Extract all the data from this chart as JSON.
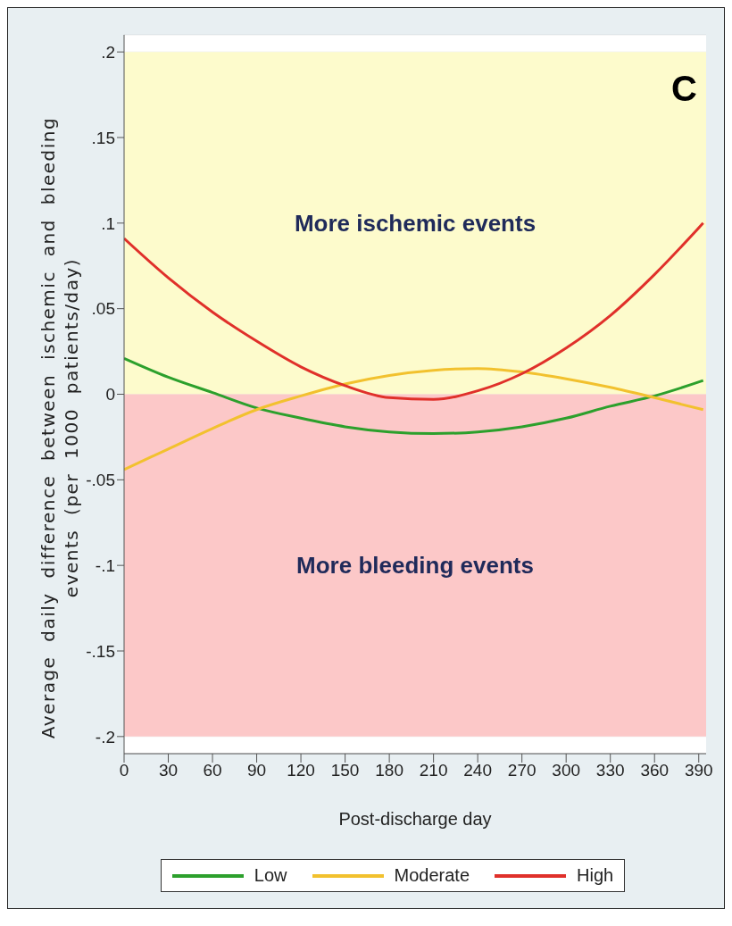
{
  "chart_data": {
    "type": "line",
    "xlabel": "Post-discharge day",
    "ylabel": "Average daily difference between ischemic and bleeding events (per 1000 patients/day)",
    "annotations": [
      "C"
    ],
    "x": [
      0,
      30,
      60,
      90,
      120,
      150,
      180,
      210,
      240,
      270,
      300,
      330,
      360,
      393
    ],
    "series": [
      {
        "name": "Low",
        "color": "#2ca02c",
        "values": [
          0.021,
          0.01,
          0.001,
          -0.008,
          -0.014,
          -0.019,
          -0.022,
          -0.023,
          -0.022,
          -0.019,
          -0.014,
          -0.007,
          -0.001,
          0.008
        ]
      },
      {
        "name": "Moderate",
        "color": "#f2c12e",
        "values": [
          -0.044,
          -0.032,
          -0.02,
          -0.009,
          -0.001,
          0.006,
          0.011,
          0.014,
          0.015,
          0.013,
          0.009,
          0.004,
          -0.002,
          -0.009
        ]
      },
      {
        "name": "High",
        "color": "#e0302a",
        "values": [
          0.091,
          0.068,
          0.048,
          0.031,
          0.016,
          0.005,
          -0.002,
          -0.003,
          0.002,
          0.012,
          0.027,
          0.046,
          0.07,
          0.1
        ]
      }
    ],
    "bands": [
      {
        "axis": "y",
        "from": 0,
        "to": 0.2,
        "label": "More ischemic events",
        "color": "#fdfbcc"
      },
      {
        "axis": "y",
        "from": -0.2,
        "to": 0,
        "label": "More bleeding events",
        "color": "#fcc8c8"
      }
    ],
    "xlim": [
      0,
      395
    ],
    "xticks": [
      0,
      30,
      60,
      90,
      120,
      150,
      180,
      210,
      240,
      270,
      300,
      330,
      360,
      390
    ],
    "ylim": [
      -0.21,
      0.21
    ],
    "yticks": [
      {
        "value": -0.2,
        "label": "-.2"
      },
      {
        "value": -0.15,
        "label": "-.15"
      },
      {
        "value": -0.1,
        "label": "-.1"
      },
      {
        "value": -0.05,
        "label": "-.05"
      },
      0,
      {
        "value": 0.05,
        "label": ".05"
      },
      {
        "value": 0.1,
        "label": ".1"
      },
      {
        "value": 0.15,
        "label": ".15"
      },
      {
        "value": 0.2,
        "label": ".2"
      }
    ],
    "grid": "y",
    "legend": "bottom"
  }
}
